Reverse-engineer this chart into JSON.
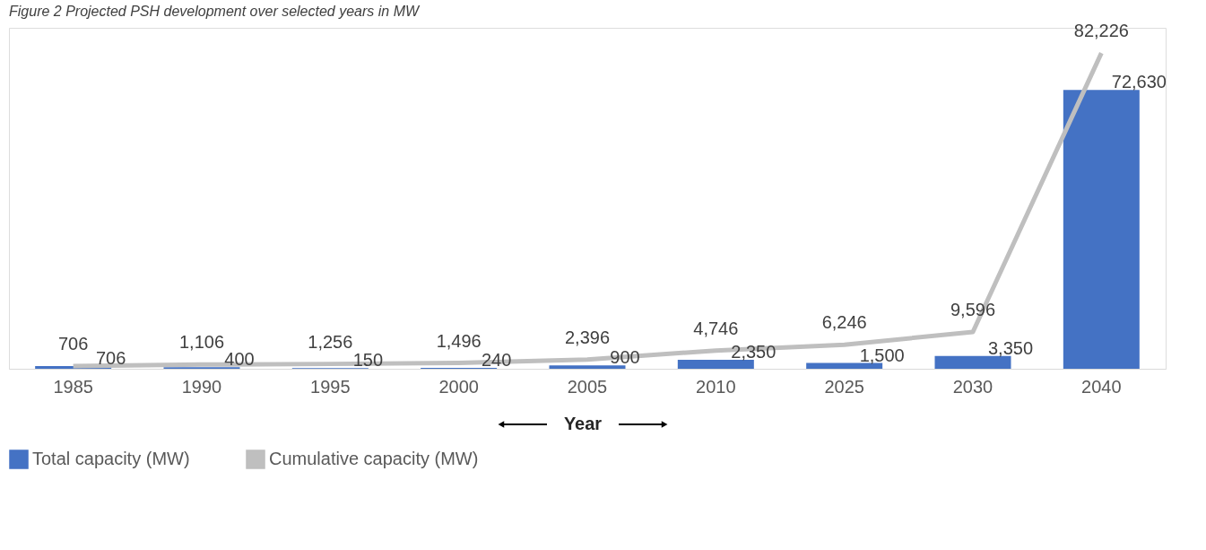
{
  "chart_data": {
    "type": "bar",
    "title": "Figure 2 Projected PSH development over selected years in MW",
    "xlabel": "Year",
    "categories": [
      "1985",
      "1990",
      "1995",
      "2000",
      "2005",
      "2010",
      "2025",
      "2030",
      "2040"
    ],
    "series": [
      {
        "name": "Total capacity (MW)",
        "color": "#4472c4",
        "values": [
          706,
          400,
          150,
          240,
          900,
          2350,
          1500,
          3350,
          72630
        ],
        "value_labels": [
          "706",
          "400",
          "150",
          "240",
          "900",
          "2,350",
          "1,500",
          "3,350",
          "72,630"
        ]
      },
      {
        "name": "Cumulative capacity (MW)",
        "type": "line",
        "color": "#bfbfbf",
        "values": [
          706,
          1106,
          1256,
          1496,
          2396,
          4746,
          6246,
          9596,
          82226
        ],
        "value_labels": [
          "706",
          "1,106",
          "1,256",
          "1,496",
          "2,396",
          "4,746",
          "6,246",
          "9,596",
          "82,226"
        ]
      }
    ],
    "legend": "bottom"
  }
}
